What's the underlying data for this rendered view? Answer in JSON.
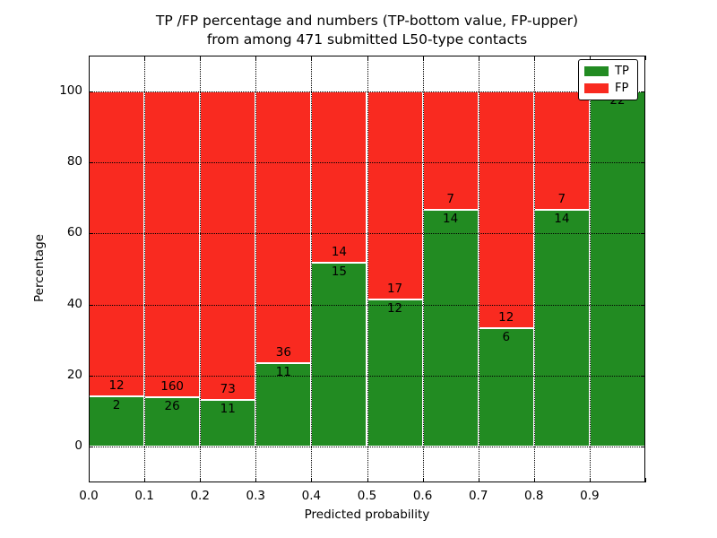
{
  "figure": {
    "title_line1": "TP /FP percentage and numbers (TP-bottom value, FP-upper)",
    "title_line2": "from among 471 submitted L50-type contacts",
    "xlabel": "Predicted probability",
    "ylabel": "Percentage"
  },
  "chart_data": {
    "type": "bar",
    "stacked": true,
    "normalized": "each bin scaled to 100%, counts annotated on segments",
    "title": "TP /FP percentage and numbers (TP-bottom value, FP-upper) from among 471 submitted L50-type contacts",
    "xlabel": "Predicted probability",
    "ylabel": "Percentage",
    "xlim": [
      0.0,
      1.0
    ],
    "ylim": [
      -10,
      110
    ],
    "x_bin_edges": [
      0.0,
      0.1,
      0.2,
      0.3,
      0.4,
      0.5,
      0.6,
      0.7,
      0.8,
      0.9,
      1.0
    ],
    "x_tick_labels": [
      "0.0",
      "0.1",
      "0.2",
      "0.3",
      "0.4",
      "0.5",
      "0.6",
      "0.7",
      "0.8",
      "0.9"
    ],
    "y_tick_values": [
      0,
      20,
      40,
      60,
      80,
      100
    ],
    "y_tick_labels": [
      "0",
      "20",
      "40",
      "60",
      "80",
      "100"
    ],
    "series": [
      {
        "name": "TP",
        "color": "#228b22",
        "counts": [
          2,
          26,
          11,
          11,
          15,
          12,
          14,
          6,
          14,
          22
        ]
      },
      {
        "name": "FP",
        "color": "#f92a20",
        "counts": [
          12,
          160,
          73,
          36,
          14,
          17,
          7,
          12,
          7,
          0
        ]
      }
    ],
    "total_contacts_shown_in_title": 471,
    "grid": {
      "on": true,
      "style": "dotted",
      "color": "#000000"
    },
    "legend": {
      "position": "upper right",
      "entries": [
        {
          "label": "TP",
          "color": "#228b22"
        },
        {
          "label": "FP",
          "color": "#f92a20"
        }
      ]
    }
  },
  "colors": {
    "tp_green": "#228b22",
    "fp_red": "#f92a20",
    "background": "#ffffff",
    "axis_and_text": "#000000",
    "bar_edge": "#ffffff"
  }
}
